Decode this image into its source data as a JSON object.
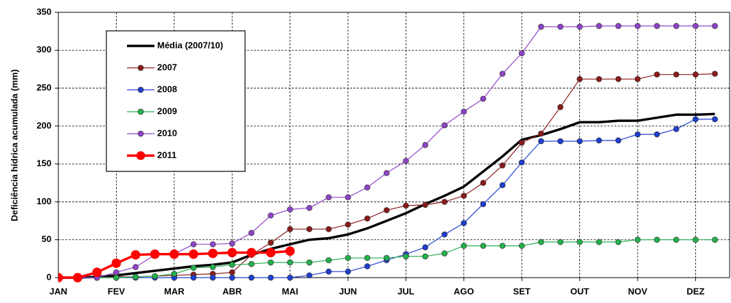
{
  "chart_data": {
    "type": "line",
    "y_label": "Deficiência hídrica acumulada (mm)",
    "categories": [
      "JAN",
      null,
      null,
      "FEV",
      null,
      null,
      "MAR",
      null,
      null,
      "ABR",
      null,
      null,
      "MAI",
      null,
      null,
      "JUN",
      null,
      null,
      "JUL",
      null,
      null,
      "AGO",
      null,
      null,
      "SET",
      null,
      null,
      "OUT",
      null,
      null,
      "NOV",
      null,
      null,
      "DEZ",
      null
    ],
    "ylim": [
      0,
      350
    ],
    "yticks": [
      0,
      50,
      100,
      150,
      200,
      250,
      300,
      350
    ],
    "grid": true,
    "legend": "upper left",
    "series": [
      {
        "name": "Média (2007/10)",
        "color": "#000000",
        "line_width": 3.5,
        "marker": false,
        "values": [
          0,
          0,
          1,
          3,
          6,
          9,
          12,
          15,
          17,
          20,
          30,
          38,
          44,
          50,
          52,
          57,
          65,
          75,
          85,
          97,
          108,
          120,
          140,
          160,
          182,
          188,
          196,
          205,
          205,
          207,
          207,
          211,
          215,
          215,
          216
        ]
      },
      {
        "name": "2007",
        "color": "#8b1a1a",
        "line_width": 1.2,
        "marker": true,
        "values": [
          0,
          0,
          0,
          1,
          1,
          2,
          3,
          4,
          5,
          7,
          30,
          46,
          64,
          64,
          64,
          70,
          78,
          89,
          95,
          96,
          100,
          108,
          125,
          148,
          178,
          190,
          225,
          262,
          262,
          262,
          262,
          268,
          268,
          268,
          269
        ]
      },
      {
        "name": "2008",
        "color": "#1f3fd0",
        "line_width": 1.2,
        "marker": true,
        "values": [
          0,
          0,
          0,
          0,
          0,
          0,
          0,
          0,
          0,
          0,
          0,
          0,
          0,
          3,
          8,
          8,
          15,
          23,
          31,
          40,
          57,
          72,
          97,
          122,
          152,
          180,
          180,
          180,
          181,
          181,
          189,
          189,
          196,
          209,
          209
        ]
      },
      {
        "name": "2009",
        "color": "#22b14c",
        "line_width": 1.2,
        "marker": true,
        "values": [
          0,
          0,
          0,
          0,
          1,
          2,
          5,
          13,
          14,
          17,
          18,
          20,
          20,
          20,
          23,
          26,
          26,
          26,
          28,
          28,
          32,
          42,
          42,
          42,
          42,
          47,
          47,
          47,
          47,
          47,
          50,
          50,
          50,
          50,
          50
        ]
      },
      {
        "name": "2010",
        "color": "#8e44c8",
        "line_width": 1.2,
        "marker": true,
        "values": [
          0,
          0,
          0,
          7,
          14,
          30,
          31,
          44,
          44,
          45,
          59,
          82,
          90,
          92,
          106,
          106,
          119,
          138,
          154,
          175,
          201,
          219,
          236,
          269,
          296,
          331,
          331,
          331,
          332,
          332,
          332,
          332,
          332,
          332,
          332
        ]
      },
      {
        "name": "2011",
        "color": "#ff0000",
        "line_width": 3.5,
        "marker": true,
        "values": [
          0,
          0,
          7,
          19,
          30,
          31,
          31,
          31,
          32,
          33,
          33,
          33,
          35,
          null,
          null,
          null,
          null,
          null,
          null,
          null,
          null,
          null,
          null,
          null,
          null,
          null,
          null,
          null,
          null,
          null,
          null,
          null,
          null,
          null,
          null
        ]
      }
    ]
  }
}
